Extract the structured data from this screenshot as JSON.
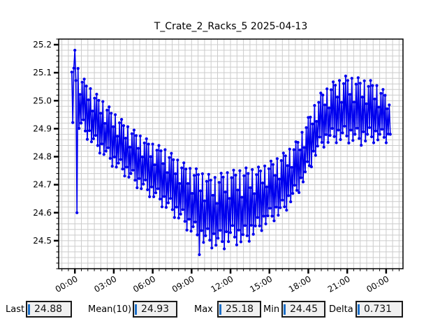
{
  "chart_data": {
    "type": "line",
    "title": "T_Crate_2_Racks_5 2025-04-13",
    "series_name": "T_Crate_2_Racks_5",
    "date": "2025-04-13",
    "line_color": "#0000ee",
    "marker": "circle",
    "grid": true,
    "legend": "none",
    "xlabel": "",
    "ylabel": "",
    "xlim": [
      -1.25,
      25.3
    ],
    "ylim": [
      24.4,
      25.22
    ],
    "xtick_values": [
      0,
      3,
      6,
      9,
      12,
      15,
      18,
      21,
      24
    ],
    "xtick_labels": [
      "00:00",
      "03:00",
      "06:00",
      "09:00",
      "12:00",
      "15:00",
      "18:00",
      "21:00",
      "00:00"
    ],
    "ytick_values": [
      24.5,
      24.6,
      24.7,
      24.8,
      24.9,
      25.0,
      25.1,
      25.2
    ],
    "ytick_labels": [
      "24.5",
      "24.6",
      "24.7",
      "24.8",
      "24.9",
      "25.0",
      "25.1",
      "25.2"
    ],
    "x_minor_step": 0.5,
    "y_minor_step": 0.02,
    "t_start": -0.24,
    "sample_step_h": 0.08,
    "n_points": 308,
    "envelope": [
      [
        -0.3,
        25.0,
        0.09
      ],
      [
        0.0,
        25.02,
        0.13
      ],
      [
        0.5,
        24.99,
        0.1
      ],
      [
        1.0,
        24.96,
        0.1
      ],
      [
        1.5,
        24.93,
        0.1
      ],
      [
        2.0,
        24.91,
        0.1
      ],
      [
        3.0,
        24.86,
        0.1
      ],
      [
        4.0,
        24.82,
        0.095
      ],
      [
        5.0,
        24.78,
        0.1
      ],
      [
        6.0,
        24.75,
        0.1
      ],
      [
        7.0,
        24.72,
        0.11
      ],
      [
        8.0,
        24.68,
        0.11
      ],
      [
        9.0,
        24.64,
        0.12
      ],
      [
        9.6,
        24.62,
        0.135
      ],
      [
        10.0,
        24.61,
        0.13
      ],
      [
        11.0,
        24.6,
        0.13
      ],
      [
        11.5,
        24.61,
        0.14
      ],
      [
        12.0,
        24.62,
        0.13
      ],
      [
        13.0,
        24.62,
        0.14
      ],
      [
        14.0,
        24.64,
        0.12
      ],
      [
        15.0,
        24.67,
        0.11
      ],
      [
        16.0,
        24.7,
        0.11
      ],
      [
        17.0,
        24.75,
        0.1
      ],
      [
        17.5,
        24.79,
        0.1
      ],
      [
        18.0,
        24.84,
        0.1
      ],
      [
        18.5,
        24.89,
        0.1
      ],
      [
        19.0,
        24.93,
        0.1
      ],
      [
        20.0,
        24.96,
        0.11
      ],
      [
        21.0,
        24.97,
        0.12
      ],
      [
        22.0,
        24.96,
        0.12
      ],
      [
        23.0,
        24.96,
        0.11
      ],
      [
        24.0,
        24.94,
        0.09
      ],
      [
        24.35,
        24.91,
        0.06
      ]
    ],
    "zigzag_pattern": [
      1.0,
      -0.8,
      0.85,
      -1.0,
      0.45,
      -0.6,
      0.95,
      -0.9,
      0.25,
      -0.7,
      0.8,
      -0.5
    ],
    "anchors": [
      [
        0.0,
        25.18
      ],
      [
        0.16,
        24.6
      ],
      [
        9.6,
        24.45
      ],
      [
        24.32,
        24.88
      ]
    ],
    "stats_summary": {
      "last": 24.88,
      "mean10": 24.93,
      "max": 25.18,
      "min": 24.45,
      "delta": 0.731
    }
  },
  "stats_row": [
    {
      "label": "Last",
      "value": "24.88"
    },
    {
      "label": "Mean(10)",
      "value": "24.93"
    },
    {
      "label": "Max",
      "value": "25.18"
    },
    {
      "label": "Min",
      "value": "24.45"
    },
    {
      "label": "Delta",
      "value": "0.731"
    }
  ],
  "colors": {
    "line": "#0000ee",
    "grid": "#cccccc",
    "frame": "#000000",
    "tick": "#000000",
    "box_bg": "#f0f0f0",
    "box_border": "#1a1a1a",
    "cursor_bar": "#1c6fc8",
    "background": "#ffffff"
  }
}
